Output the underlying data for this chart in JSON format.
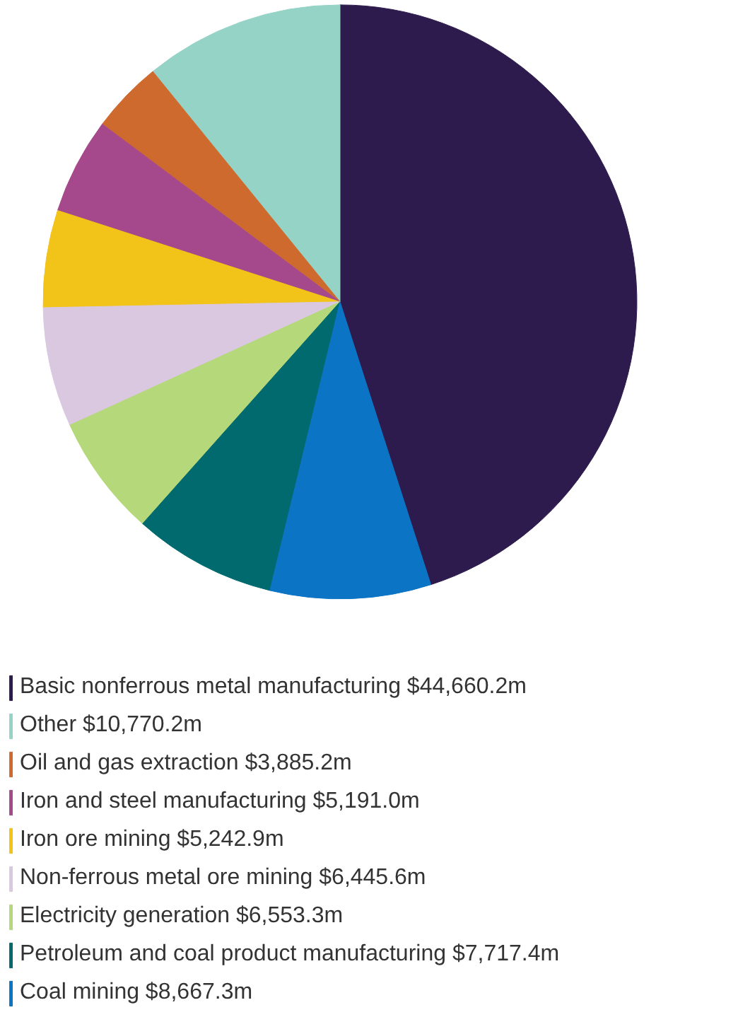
{
  "chart_data": {
    "type": "pie",
    "legend": "bottom",
    "categories": [
      "Basic nonferrous metal manufacturing",
      "Other",
      "Oil and gas extraction",
      "Iron and steel manufacturing",
      "Iron ore mining",
      "Non-ferrous metal ore mining",
      "Electricity generation",
      "Petroleum and coal product manufacturing",
      "Coal mining"
    ],
    "values": [
      44660.2,
      10770.2,
      3885.2,
      5191.0,
      5242.9,
      6445.6,
      6553.3,
      7717.4,
      8667.3
    ],
    "value_labels": [
      "$44,660.2m",
      "$10,770.2m",
      "$3,885.2m",
      "$5,191.0m",
      "$5,242.9m",
      "$6,445.6m",
      "$6,553.3m",
      "$7,717.4m",
      "$8,667.3m"
    ],
    "colors": [
      "#2d1b4e",
      "#94d3c6",
      "#cf6a2e",
      "#a5498c",
      "#f2c318",
      "#d9c8e0",
      "#b5d87a",
      "#006a6e",
      "#0c74c4"
    ]
  }
}
